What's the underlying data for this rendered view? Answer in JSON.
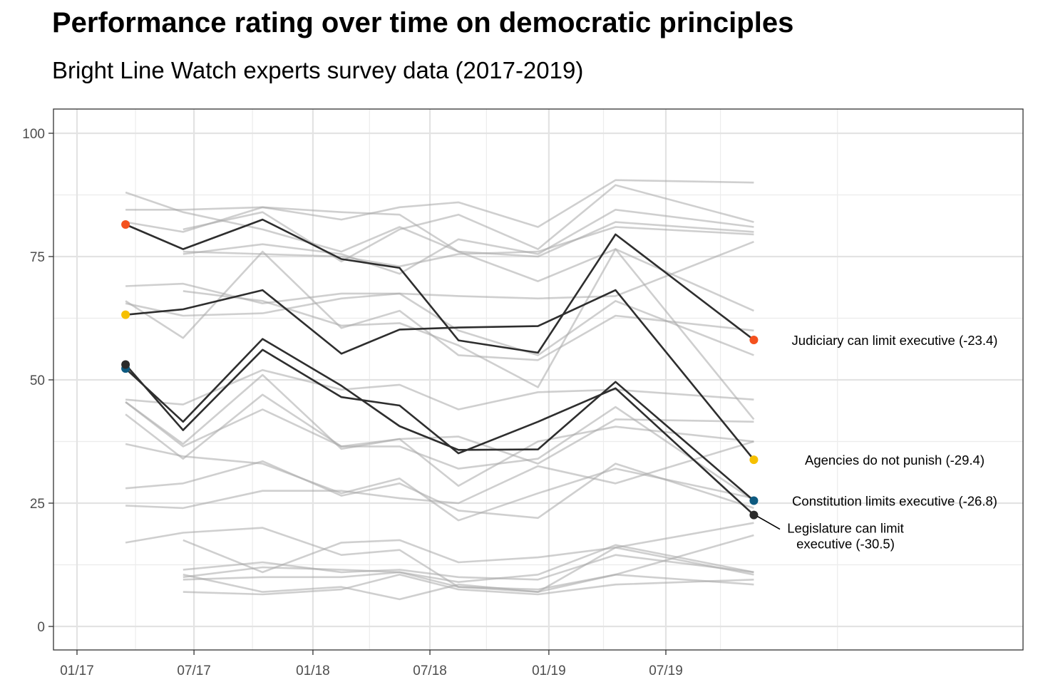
{
  "chart_data": {
    "type": "line",
    "title": "Performance rating over time on democratic principles",
    "subtitle": "Bright Line Watch experts survey data (2017-2019)",
    "xlabel": "",
    "ylabel": "",
    "x_ticks": [
      "01/17",
      "07/17",
      "01/18",
      "07/18",
      "01/19",
      "07/19"
    ],
    "y_ticks": [
      0,
      25,
      50,
      75,
      100
    ],
    "ylim": [
      -5,
      105
    ],
    "grid": true,
    "waves": [
      "2017-02",
      "2017-05",
      "2017-09",
      "2018-01",
      "2018-04",
      "2018-07",
      "2018-11",
      "2019-03",
      "2019-10"
    ],
    "highlighted_series": [
      {
        "label": "Judiciary can limit executive (-23.4)",
        "color": "#F4511E",
        "values": [
          81.5,
          76.5,
          82.5,
          74.5,
          72.7,
          58,
          55.5,
          79.5,
          58.1
        ]
      },
      {
        "label": "Agencies do not punish (-29.4)",
        "color": "#F6C000",
        "values": [
          63.2,
          64.3,
          68.2,
          55.3,
          60.2,
          60.6,
          60.9,
          68.2,
          33.8
        ]
      },
      {
        "label": "Constitution limits executive (-26.8)",
        "color": "#0E5A80",
        "values": [
          52.3,
          41.5,
          58.3,
          48.8,
          40.6,
          35.8,
          35.9,
          49.6,
          25.5
        ]
      },
      {
        "label_line1": "Legislature can limit",
        "label_line2": "executive (-30.5)",
        "color": "#2B2B2B",
        "values": [
          53.1,
          39.8,
          56.1,
          46.5,
          44.8,
          35.1,
          41.5,
          48.3,
          22.6
        ]
      }
    ],
    "background_series": [
      [
        88,
        84,
        80.5,
        76,
        81,
        76,
        70,
        76.5,
        64
      ],
      [
        84.5,
        84.5,
        85,
        84,
        83.5,
        76,
        75,
        82,
        80
      ],
      [
        82,
        80,
        85,
        82.5,
        85,
        86,
        81,
        90.5,
        90
      ],
      [
        null,
        80.5,
        84,
        74,
        80.5,
        83.5,
        76.5,
        89.5,
        82
      ],
      [
        null,
        75.5,
        77.5,
        75.5,
        71.5,
        78.5,
        75.5,
        84.5,
        81
      ],
      [
        null,
        76,
        75.5,
        75,
        73,
        75.5,
        76,
        81,
        79.5
      ],
      [
        69,
        69.5,
        65.5,
        67.5,
        67.5,
        67,
        66.5,
        67,
        78
      ],
      [
        66,
        58.5,
        76,
        60.5,
        64,
        55,
        54,
        63,
        60
      ],
      [
        65.5,
        63,
        63.5,
        66.5,
        67.5,
        60,
        55,
        66,
        55
      ],
      [
        null,
        68,
        66,
        61,
        61.5,
        57,
        48.5,
        76.5,
        42
      ],
      [
        46,
        45,
        52,
        48,
        49,
        44,
        47.5,
        48,
        46
      ],
      [
        45.5,
        37,
        51,
        36,
        38,
        38.5,
        33,
        42,
        41.5
      ],
      [
        43,
        34,
        47,
        36.5,
        38,
        28.5,
        37.5,
        40.5,
        37.5
      ],
      [
        45.5,
        36.5,
        44,
        36.5,
        36.5,
        32,
        34,
        44.5,
        25.5
      ],
      [
        37,
        34.5,
        33,
        27,
        30,
        21.5,
        27,
        32,
        26
      ],
      [
        28,
        29,
        33.5,
        26.5,
        29,
        23.5,
        22,
        33,
        24
      ],
      [
        24.5,
        24,
        27.5,
        27.5,
        26,
        25,
        32.5,
        29,
        37.5
      ],
      [
        17,
        19,
        20,
        14.5,
        15.5,
        8,
        7,
        10.5,
        18.5
      ],
      [
        null,
        17.5,
        11,
        17,
        17.5,
        13,
        14,
        16,
        21
      ],
      [
        null,
        11.5,
        13,
        11,
        11.5,
        10,
        9.5,
        14.5,
        11
      ],
      [
        null,
        10,
        12,
        11.5,
        11,
        9,
        10.5,
        16.5,
        11
      ],
      [
        null,
        10.5,
        7,
        8,
        5.5,
        8.5,
        7,
        16,
        10.5
      ],
      [
        null,
        7,
        6.5,
        7.5,
        10.5,
        7.5,
        6.5,
        8.5,
        9.5
      ],
      [
        null,
        9.5,
        10,
        10,
        11,
        8,
        7.5,
        10.5,
        8.5
      ]
    ]
  }
}
